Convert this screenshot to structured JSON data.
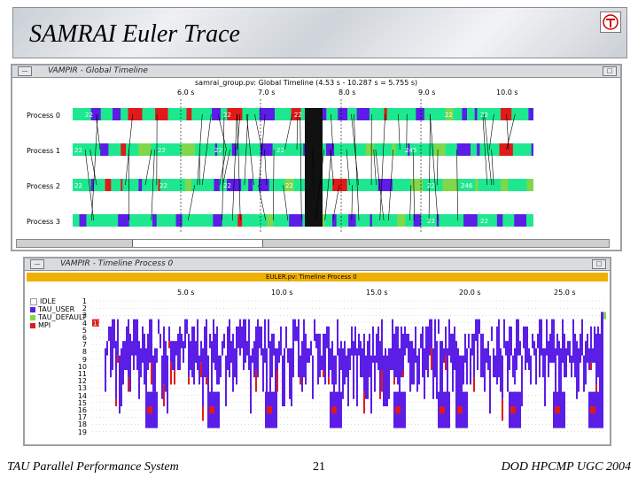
{
  "slide": {
    "title": "SAMRAI Euler Trace",
    "footer_left": "TAU Parallel Performance System",
    "footer_center": "21",
    "footer_right": "DOD HPCMP UGC 2004"
  },
  "colors": {
    "idle": "#1ee88f",
    "tau_user": "#5a1ee6",
    "tau_default": "#7fd84a",
    "mpi": "#e01a1a",
    "header_bar": "#f0b000"
  },
  "global_window": {
    "title": "VAMPIR - Global Timeline",
    "subtitle": "samrai_group.pv: Global Timeline (4.53 s - 10.287 s = 5.755 s)",
    "ticks": [
      "6.0 s",
      "7.0 s",
      "8.0 s",
      "9.0 s",
      "10.0 s"
    ],
    "processes": [
      "Process 0",
      "Process 1",
      "Process 2",
      "Process 3"
    ],
    "message_labels": [
      [
        "22",
        "22",
        "22",
        "22",
        "22"
      ],
      [
        "22",
        "22",
        "22",
        "22",
        "245"
      ],
      [
        "22",
        "22",
        "22",
        "22",
        "22",
        "246"
      ],
      [
        "22",
        "22"
      ]
    ]
  },
  "process_window": {
    "title": "VAMPIR - Timeline Process 0",
    "subtitle": "EULER.pv: Timeline Process 0",
    "ticks": [
      "5.0 s",
      "10.0 s",
      "15.0 s",
      "20.0 s",
      "25.0 s"
    ],
    "legend": [
      "IDLE",
      "TAU_USER",
      "TAU_DEFAULT",
      "MPI"
    ],
    "rows": [
      "1",
      "2",
      "3",
      "4",
      "5",
      "6",
      "7",
      "8",
      "9",
      "10",
      "11",
      "12",
      "13",
      "14",
      "15",
      "16",
      "17",
      "18",
      "19"
    ],
    "marker": "17"
  }
}
